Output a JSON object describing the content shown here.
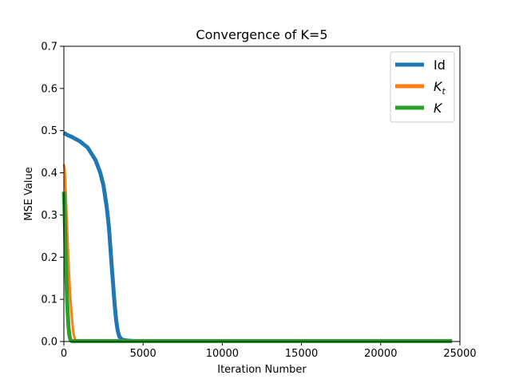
{
  "chart_data": {
    "type": "line",
    "title": "Convergence of K=5",
    "xlabel": "Iteration Number",
    "ylabel": "MSE Value",
    "xlim": [
      0,
      25000
    ],
    "ylim": [
      0,
      0.7
    ],
    "xticks": [
      0,
      5000,
      10000,
      15000,
      20000,
      25000
    ],
    "xtick_labels": [
      "0",
      "5000",
      "10000",
      "15000",
      "20000",
      "25000"
    ],
    "yticks": [
      0.0,
      0.1,
      0.2,
      0.3,
      0.4,
      0.5,
      0.6,
      0.7
    ],
    "ytick_labels": [
      "0.0",
      "0.1",
      "0.2",
      "0.3",
      "0.4",
      "0.5",
      "0.6",
      "0.7"
    ],
    "grid": false,
    "legend_position": "top-right",
    "series": [
      {
        "name": "Id",
        "legend_main": "Id",
        "legend_sub": "",
        "color": "#1f77b4",
        "x": [
          0,
          200,
          500,
          1000,
          1500,
          2000,
          2300,
          2500,
          2700,
          2850,
          3000,
          3100,
          3200,
          3300,
          3400,
          3500,
          3600,
          3700,
          4000,
          4500,
          5000,
          24500
        ],
        "y": [
          0.495,
          0.49,
          0.485,
          0.475,
          0.46,
          0.43,
          0.4,
          0.37,
          0.32,
          0.27,
          0.19,
          0.14,
          0.09,
          0.05,
          0.025,
          0.012,
          0.007,
          0.004,
          0.002,
          0.001,
          0.001,
          0.001
        ]
      },
      {
        "name": "K_t",
        "legend_main": "K",
        "legend_sub": "t",
        "color": "#ff7f0e",
        "x": [
          0,
          50,
          100,
          200,
          300,
          400,
          500,
          600,
          700,
          800,
          24500
        ],
        "y": [
          0.42,
          0.41,
          0.37,
          0.27,
          0.18,
          0.11,
          0.06,
          0.02,
          0.005,
          0.001,
          0.001
        ],
        "linewidth": 3
      },
      {
        "name": "K",
        "legend_main": "K",
        "legend_sub": "",
        "color": "#2ca02c",
        "x": [
          0,
          30,
          60,
          100,
          150,
          200,
          250,
          300,
          350,
          400,
          450,
          500,
          24500
        ],
        "y": [
          0.355,
          0.33,
          0.29,
          0.22,
          0.16,
          0.1,
          0.06,
          0.03,
          0.015,
          0.006,
          0.002,
          0.001,
          0.001
        ]
      }
    ]
  }
}
